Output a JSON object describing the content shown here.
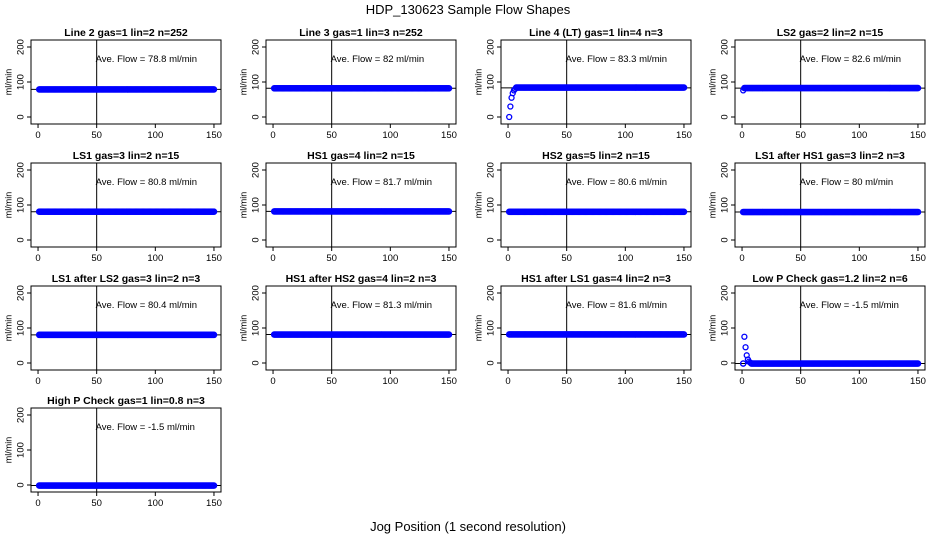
{
  "title": "HDP_130623  Sample Flow Shapes",
  "xlabel": "Jog Position (1 second resolution)",
  "ylabel": "ml/min",
  "colors": {
    "points": "#0000ff",
    "axes": "#000000"
  },
  "chart_data": [
    {
      "type": "scatter",
      "title": "Line 2 gas=1 lin=2 n=252",
      "annotation": "Ave. Flow =  78.8  ml/min",
      "ylabel": "ml/min",
      "xlim": [
        0,
        150
      ],
      "ylim": [
        -20,
        220
      ],
      "x_ticks": [
        0,
        50,
        100,
        150
      ],
      "y_ticks": [
        0,
        100,
        200
      ],
      "vline": 50,
      "hline": 78.8,
      "points": {
        "x_start": 1,
        "x_end": 150,
        "flat_value": 78.8,
        "ramp_start": []
      }
    },
    {
      "type": "scatter",
      "title": "Line 3 gas=1 lin=3 n=252",
      "annotation": "Ave. Flow =  82  ml/min",
      "ylabel": "ml/min",
      "xlim": [
        0,
        150
      ],
      "ylim": [
        -20,
        220
      ],
      "x_ticks": [
        0,
        50,
        100,
        150
      ],
      "y_ticks": [
        0,
        100,
        200
      ],
      "vline": 50,
      "hline": 82,
      "points": {
        "x_start": 1,
        "x_end": 150,
        "flat_value": 82,
        "ramp_start": []
      }
    },
    {
      "type": "scatter",
      "title": "Line 4 (LT) gas=1 lin=4 n=3",
      "annotation": "Ave. Flow =  83.3  ml/min",
      "ylabel": "ml/min",
      "xlim": [
        0,
        150
      ],
      "ylim": [
        -20,
        220
      ],
      "x_ticks": [
        0,
        50,
        100,
        150
      ],
      "y_ticks": [
        0,
        100,
        200
      ],
      "vline": 50,
      "hline": 83.3,
      "points": {
        "x_start": 1,
        "x_end": 150,
        "flat_value": 84,
        "ramp_start": [
          [
            1,
            0
          ],
          [
            2,
            30
          ],
          [
            3,
            55
          ],
          [
            4,
            68
          ],
          [
            5,
            76
          ],
          [
            6,
            80
          ]
        ]
      }
    },
    {
      "type": "scatter",
      "title": "LS2 gas=2 lin=2 n=15",
      "annotation": "Ave. Flow =  82.6  ml/min",
      "ylabel": "ml/min",
      "xlim": [
        0,
        150
      ],
      "ylim": [
        -20,
        220
      ],
      "x_ticks": [
        0,
        50,
        100,
        150
      ],
      "y_ticks": [
        0,
        100,
        200
      ],
      "vline": 50,
      "hline": 82.6,
      "points": {
        "x_start": 1,
        "x_end": 150,
        "flat_value": 82.6,
        "ramp_start": [
          [
            1,
            76
          ]
        ]
      }
    },
    {
      "type": "scatter",
      "title": "LS1 gas=3 lin=2 n=15",
      "annotation": "Ave. Flow =  80.8  ml/min",
      "ylabel": "ml/min",
      "xlim": [
        0,
        150
      ],
      "ylim": [
        -20,
        220
      ],
      "x_ticks": [
        0,
        50,
        100,
        150
      ],
      "y_ticks": [
        0,
        100,
        200
      ],
      "vline": 50,
      "hline": 80.8,
      "points": {
        "x_start": 1,
        "x_end": 150,
        "flat_value": 80.8,
        "ramp_start": []
      }
    },
    {
      "type": "scatter",
      "title": "HS1 gas=4 lin=2 n=15",
      "annotation": "Ave. Flow =  81.7  ml/min",
      "ylabel": "ml/min",
      "xlim": [
        0,
        150
      ],
      "ylim": [
        -20,
        220
      ],
      "x_ticks": [
        0,
        50,
        100,
        150
      ],
      "y_ticks": [
        0,
        100,
        200
      ],
      "vline": 50,
      "hline": 81.7,
      "points": {
        "x_start": 1,
        "x_end": 150,
        "flat_value": 81.7,
        "ramp_start": []
      }
    },
    {
      "type": "scatter",
      "title": "HS2 gas=5 lin=2 n=15",
      "annotation": "Ave. Flow =  80.6  ml/min",
      "ylabel": "ml/min",
      "xlim": [
        0,
        150
      ],
      "ylim": [
        -20,
        220
      ],
      "x_ticks": [
        0,
        50,
        100,
        150
      ],
      "y_ticks": [
        0,
        100,
        200
      ],
      "vline": 50,
      "hline": 80.6,
      "points": {
        "x_start": 1,
        "x_end": 150,
        "flat_value": 80.6,
        "ramp_start": []
      }
    },
    {
      "type": "scatter",
      "title": "LS1 after HS1 gas=3 lin=2 n=3",
      "annotation": "Ave. Flow =  80  ml/min",
      "ylabel": "ml/min",
      "xlim": [
        0,
        150
      ],
      "ylim": [
        -20,
        220
      ],
      "x_ticks": [
        0,
        50,
        100,
        150
      ],
      "y_ticks": [
        0,
        100,
        200
      ],
      "vline": 50,
      "hline": 80,
      "points": {
        "x_start": 1,
        "x_end": 150,
        "flat_value": 80,
        "ramp_start": []
      }
    },
    {
      "type": "scatter",
      "title": "LS1 after LS2 gas=3 lin=2 n=3",
      "annotation": "Ave. Flow =  80.4  ml/min",
      "ylabel": "ml/min",
      "xlim": [
        0,
        150
      ],
      "ylim": [
        -20,
        220
      ],
      "x_ticks": [
        0,
        50,
        100,
        150
      ],
      "y_ticks": [
        0,
        100,
        200
      ],
      "vline": 50,
      "hline": 80.4,
      "points": {
        "x_start": 1,
        "x_end": 150,
        "flat_value": 80.4,
        "ramp_start": []
      }
    },
    {
      "type": "scatter",
      "title": "HS1 after HS2 gas=4 lin=2 n=3",
      "annotation": "Ave. Flow =  81.3  ml/min",
      "ylabel": "ml/min",
      "xlim": [
        0,
        150
      ],
      "ylim": [
        -20,
        220
      ],
      "x_ticks": [
        0,
        50,
        100,
        150
      ],
      "y_ticks": [
        0,
        100,
        200
      ],
      "vline": 50,
      "hline": 81.3,
      "points": {
        "x_start": 1,
        "x_end": 150,
        "flat_value": 81.3,
        "ramp_start": []
      }
    },
    {
      "type": "scatter",
      "title": "HS1 after LS1 gas=4 lin=2 n=3",
      "annotation": "Ave. Flow =  81.6  ml/min",
      "ylabel": "ml/min",
      "xlim": [
        0,
        150
      ],
      "ylim": [
        -20,
        220
      ],
      "x_ticks": [
        0,
        50,
        100,
        150
      ],
      "y_ticks": [
        0,
        100,
        200
      ],
      "vline": 50,
      "hline": 81.6,
      "points": {
        "x_start": 1,
        "x_end": 150,
        "flat_value": 81.6,
        "ramp_start": []
      }
    },
    {
      "type": "scatter",
      "title": "Low P Check gas=1.2 lin=2 n=6",
      "annotation": "Ave. Flow =  -1.5  ml/min",
      "ylabel": "ml/min",
      "xlim": [
        0,
        150
      ],
      "ylim": [
        -20,
        220
      ],
      "x_ticks": [
        0,
        50,
        100,
        150
      ],
      "y_ticks": [
        0,
        100,
        200
      ],
      "vline": 50,
      "hline": -1.5,
      "points": {
        "x_start": 1,
        "x_end": 150,
        "flat_value": -1.5,
        "ramp_start": [
          [
            2,
            75
          ],
          [
            3,
            45
          ],
          [
            4,
            22
          ],
          [
            5,
            10
          ],
          [
            6,
            4
          ],
          [
            7,
            1
          ]
        ]
      }
    },
    {
      "type": "scatter",
      "title": "High P Check gas=1 lin=0.8 n=3",
      "annotation": "Ave. Flow =  -1.5  ml/min",
      "ylabel": "ml/min",
      "xlim": [
        0,
        150
      ],
      "ylim": [
        -20,
        220
      ],
      "x_ticks": [
        0,
        50,
        100,
        150
      ],
      "y_ticks": [
        0,
        100,
        200
      ],
      "vline": 50,
      "hline": -1.5,
      "points": {
        "x_start": 1,
        "x_end": 150,
        "flat_value": -1.5,
        "ramp_start": []
      }
    }
  ]
}
